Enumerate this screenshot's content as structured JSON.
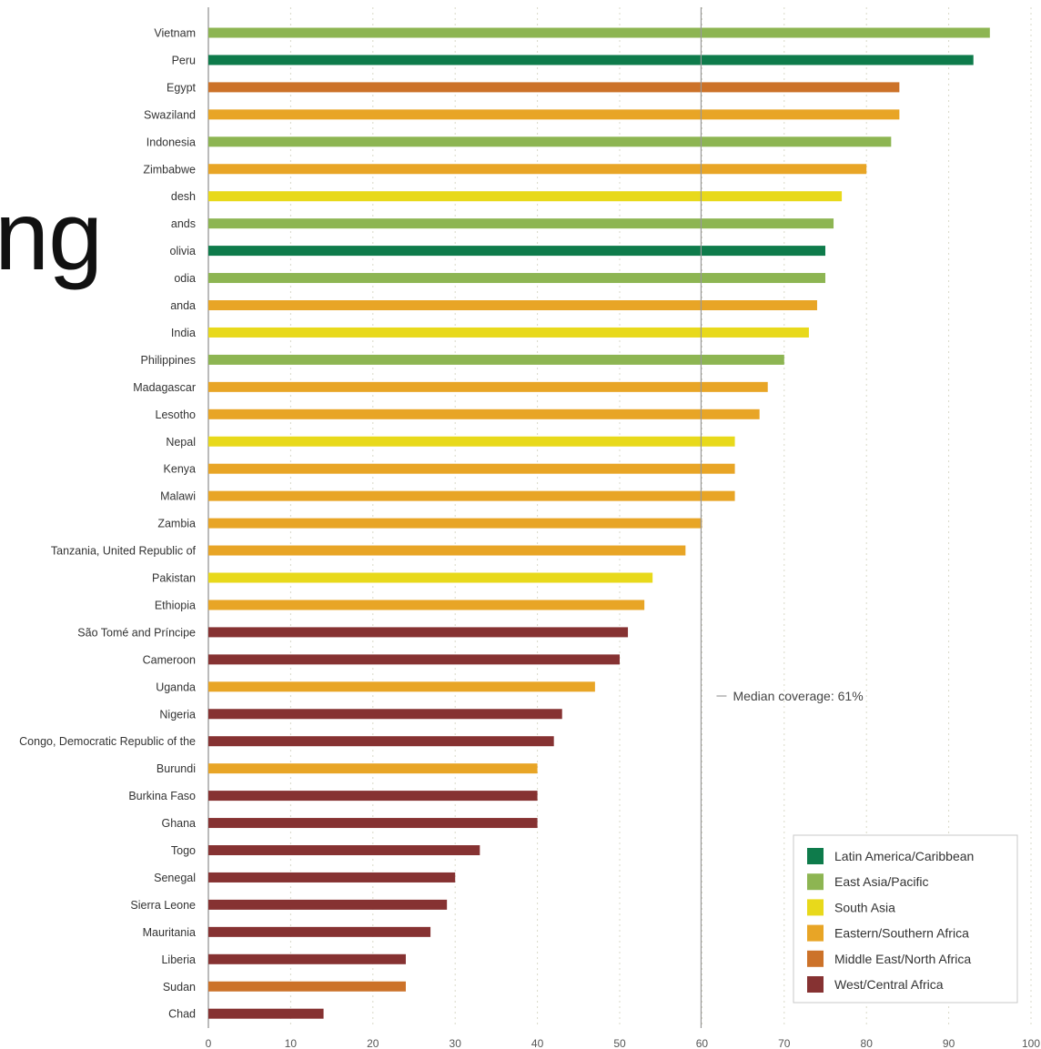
{
  "overlay_text": "ng",
  "chart_data": {
    "type": "bar",
    "orientation": "horizontal",
    "categories": [
      "Vietnam",
      "Peru",
      "Egypt",
      "Swaziland",
      "Indonesia",
      "Zimbabwe",
      "desh",
      "ands",
      "olivia",
      "odia",
      "anda",
      "India",
      "Philippines",
      "Madagascar",
      "Lesotho",
      "Nepal",
      "Kenya",
      "Malawi",
      "Zambia",
      "Tanzania, United Republic of",
      "Pakistan",
      "Ethiopia",
      "São Tomé and Príncipe",
      "Cameroon",
      "Uganda",
      "Nigeria",
      "Congo, Democratic Republic of the",
      "Burundi",
      "Burkina Faso",
      "Ghana",
      "Togo",
      "Senegal",
      "Sierra Leone",
      "Mauritania",
      "Liberia",
      "Sudan",
      "Chad"
    ],
    "values": [
      95,
      93,
      84,
      84,
      83,
      80,
      77,
      76,
      75,
      75,
      74,
      73,
      70,
      68,
      67,
      64,
      64,
      64,
      60,
      58,
      54,
      53,
      51,
      50,
      47,
      43,
      42,
      40,
      40,
      40,
      33,
      30,
      29,
      27,
      24,
      24,
      14
    ],
    "regions": [
      "East Asia/Pacific",
      "Latin America/Caribbean",
      "Middle East/North Africa",
      "Eastern/Southern Africa",
      "East Asia/Pacific",
      "Eastern/Southern Africa",
      "South Asia",
      "East Asia/Pacific",
      "Latin America/Caribbean",
      "East Asia/Pacific",
      "Eastern/Southern Africa",
      "South Asia",
      "East Asia/Pacific",
      "Eastern/Southern Africa",
      "Eastern/Southern Africa",
      "South Asia",
      "Eastern/Southern Africa",
      "Eastern/Southern Africa",
      "Eastern/Southern Africa",
      "Eastern/Southern Africa",
      "South Asia",
      "Eastern/Southern Africa",
      "West/Central Africa",
      "West/Central Africa",
      "Eastern/Southern Africa",
      "West/Central Africa",
      "West/Central Africa",
      "Eastern/Southern Africa",
      "West/Central Africa",
      "West/Central Africa",
      "West/Central Africa",
      "West/Central Africa",
      "West/Central Africa",
      "West/Central Africa",
      "West/Central Africa",
      "Middle East/North Africa",
      "West/Central Africa"
    ],
    "region_colors": {
      "Latin America/Caribbean": "#0e7b4b",
      "East Asia/Pacific": "#8db552",
      "South Asia": "#e8d91b",
      "Eastern/Southern Africa": "#e8a526",
      "Middle East/North Africa": "#cc7229",
      "West/Central Africa": "#863232"
    },
    "legend": [
      "Latin America/Caribbean",
      "East Asia/Pacific",
      "South Asia",
      "Eastern/Southern Africa",
      "Middle East/North Africa",
      "West/Central Africa"
    ],
    "legend_position": "bottom-right",
    "xlim": [
      0,
      100
    ],
    "xticks": [
      "0",
      "10",
      "20",
      "30",
      "40",
      "50",
      "60",
      "70",
      "80",
      "90",
      "100"
    ],
    "grid": true,
    "median": {
      "value": 61,
      "label": "Median coverage: 61%"
    }
  }
}
